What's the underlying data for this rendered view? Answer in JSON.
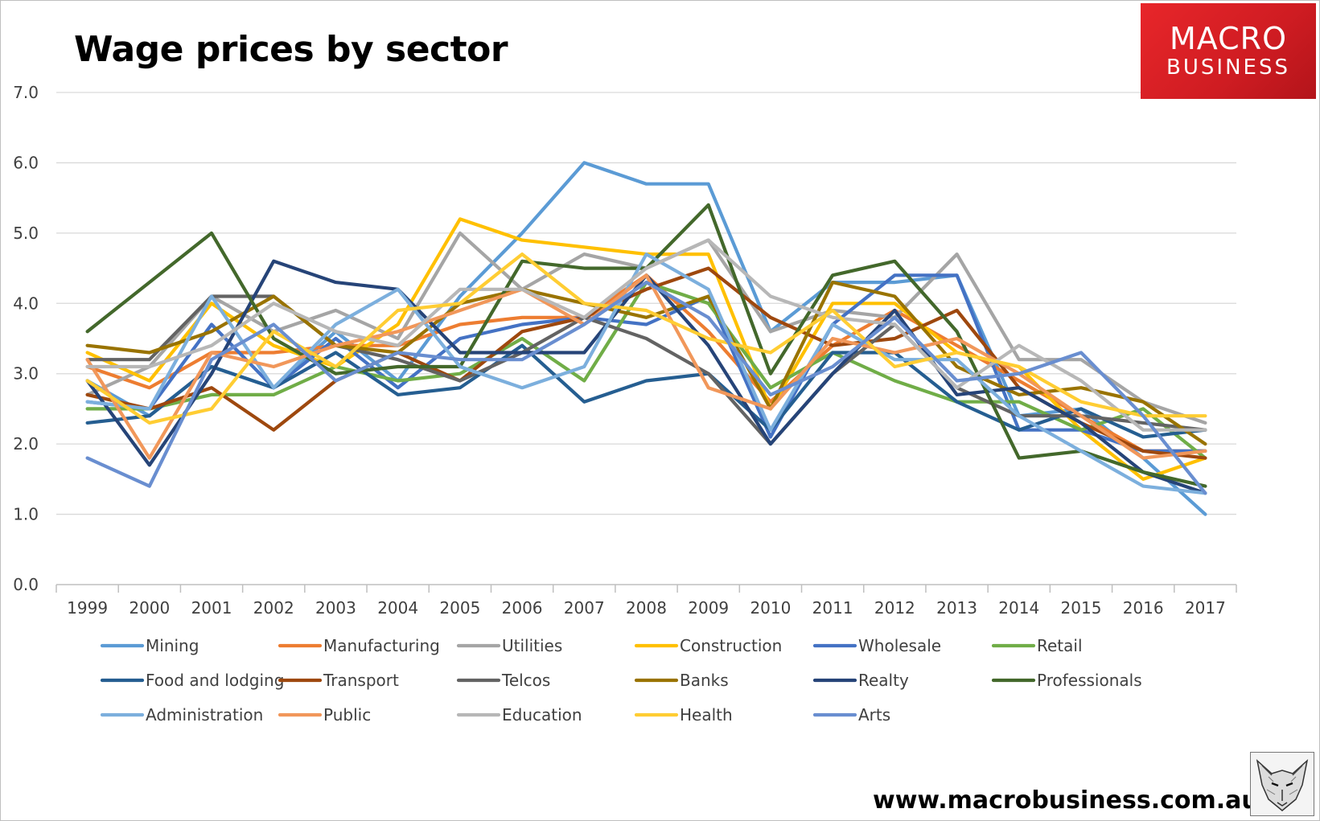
{
  "title": "Wage prices by sector",
  "logo": {
    "line1": "MACRO",
    "line2": "BUSINESS"
  },
  "website": "www.macrobusiness.com.au",
  "chart_data": {
    "type": "line",
    "title": "Wage prices by sector",
    "xlabel": "",
    "ylabel": "",
    "ylim": [
      0,
      7
    ],
    "yticks": [
      "0.0",
      "1.0",
      "2.0",
      "3.0",
      "4.0",
      "5.0",
      "6.0",
      "7.0"
    ],
    "grid": true,
    "legend_position": "bottom",
    "categories": [
      "1999",
      "2000",
      "2001",
      "2002",
      "2003",
      "2004",
      "2005",
      "2006",
      "2007",
      "2008",
      "2009",
      "2010",
      "2011",
      "2012",
      "2013",
      "2014",
      "2015",
      "2016",
      "2017"
    ],
    "series": [
      {
        "name": "Mining",
        "color": "#5b9bd5",
        "values": [
          2.9,
          2.4,
          3.1,
          2.8,
          3.6,
          2.9,
          4.1,
          5.0,
          6.0,
          5.7,
          5.7,
          3.6,
          4.3,
          4.3,
          4.4,
          2.4,
          2.5,
          1.8,
          1.0
        ]
      },
      {
        "name": "Manufacturing",
        "color": "#ed7d31",
        "values": [
          3.1,
          2.8,
          3.3,
          3.3,
          3.4,
          3.4,
          3.7,
          3.8,
          3.8,
          4.4,
          3.6,
          2.6,
          3.4,
          3.9,
          3.4,
          2.9,
          2.4,
          1.9,
          1.9
        ]
      },
      {
        "name": "Utilities",
        "color": "#a5a5a5",
        "values": [
          2.7,
          3.1,
          4.1,
          3.6,
          3.9,
          3.5,
          5.0,
          4.2,
          4.7,
          4.5,
          4.9,
          3.6,
          3.9,
          3.8,
          4.7,
          3.2,
          3.2,
          2.6,
          2.3
        ]
      },
      {
        "name": "Construction",
        "color": "#ffc000",
        "values": [
          3.3,
          2.9,
          4.0,
          3.4,
          3.1,
          3.7,
          5.2,
          4.9,
          4.8,
          4.7,
          4.7,
          2.5,
          4.0,
          4.0,
          3.3,
          3.1,
          2.2,
          1.5,
          1.8
        ]
      },
      {
        "name": "Wholesale",
        "color": "#4472c4",
        "values": [
          2.6,
          2.5,
          3.7,
          2.8,
          3.5,
          2.8,
          3.5,
          3.7,
          3.8,
          3.7,
          4.1,
          2.1,
          3.7,
          4.4,
          4.4,
          2.2,
          2.2,
          1.9,
          1.9
        ]
      },
      {
        "name": "Retail",
        "color": "#70ad47",
        "values": [
          2.5,
          2.5,
          2.7,
          2.7,
          3.1,
          2.9,
          3.0,
          3.5,
          2.9,
          4.3,
          4.0,
          2.8,
          3.3,
          2.9,
          2.6,
          2.6,
          2.2,
          2.5,
          1.8
        ]
      },
      {
        "name": "Food and lodging",
        "color": "#255e91",
        "values": [
          2.3,
          2.4,
          3.1,
          2.8,
          3.3,
          2.7,
          2.8,
          3.4,
          2.6,
          2.9,
          3.0,
          2.2,
          3.3,
          3.3,
          2.6,
          2.2,
          2.5,
          2.1,
          2.2
        ]
      },
      {
        "name": "Transport",
        "color": "#9e480e",
        "values": [
          2.7,
          2.5,
          2.8,
          2.2,
          2.9,
          3.3,
          2.9,
          3.6,
          3.8,
          4.2,
          4.5,
          3.8,
          3.4,
          3.5,
          3.9,
          2.8,
          2.3,
          1.9,
          1.8
        ]
      },
      {
        "name": "Telcos",
        "color": "#636363",
        "values": [
          3.2,
          3.2,
          4.1,
          4.1,
          3.4,
          3.2,
          2.9,
          3.3,
          3.8,
          3.5,
          3.0,
          2.0,
          3.0,
          3.7,
          2.8,
          2.4,
          2.4,
          2.3,
          2.2
        ]
      },
      {
        "name": "Banks",
        "color": "#997300",
        "values": [
          3.4,
          3.3,
          3.6,
          4.1,
          3.4,
          3.3,
          4.0,
          4.2,
          4.0,
          3.8,
          4.1,
          2.5,
          4.3,
          4.1,
          3.1,
          2.7,
          2.8,
          2.6,
          2.0
        ]
      },
      {
        "name": "Realty",
        "color": "#264478",
        "values": [
          2.9,
          1.7,
          3.0,
          4.6,
          4.3,
          4.2,
          3.3,
          3.3,
          3.3,
          4.4,
          3.4,
          2.0,
          3.0,
          3.9,
          2.7,
          2.8,
          2.3,
          1.6,
          1.3
        ]
      },
      {
        "name": "Professionals",
        "color": "#43682b",
        "values": [
          3.6,
          4.3,
          5.0,
          3.5,
          3.0,
          3.1,
          3.1,
          4.6,
          4.5,
          4.5,
          5.4,
          3.0,
          4.4,
          4.6,
          3.6,
          1.8,
          1.9,
          1.6,
          1.4
        ]
      },
      {
        "name": "Administration",
        "color": "#7cafdd",
        "values": [
          2.6,
          2.5,
          4.1,
          2.8,
          3.7,
          4.2,
          3.1,
          2.8,
          3.1,
          4.7,
          4.2,
          2.2,
          3.7,
          3.2,
          3.2,
          2.4,
          1.9,
          1.4,
          1.3
        ]
      },
      {
        "name": "Public",
        "color": "#f1975a",
        "values": [
          3.2,
          1.8,
          3.3,
          3.1,
          3.4,
          3.6,
          3.9,
          4.2,
          3.7,
          4.4,
          2.8,
          2.5,
          3.5,
          3.3,
          3.5,
          3.0,
          2.4,
          1.8,
          1.9
        ]
      },
      {
        "name": "Education",
        "color": "#b7b7b7",
        "values": [
          3.1,
          3.1,
          3.4,
          4.0,
          3.6,
          3.4,
          4.2,
          4.2,
          3.8,
          4.5,
          4.9,
          4.1,
          3.8,
          3.7,
          2.8,
          3.4,
          2.9,
          2.2,
          2.2
        ]
      },
      {
        "name": "Health",
        "color": "#ffcd33",
        "values": [
          2.9,
          2.3,
          2.5,
          3.6,
          3.1,
          3.9,
          4.0,
          4.7,
          4.0,
          3.9,
          3.5,
          3.3,
          3.9,
          3.1,
          3.3,
          3.1,
          2.6,
          2.4,
          2.4
        ]
      },
      {
        "name": "Arts",
        "color": "#698ed0",
        "values": [
          1.8,
          1.4,
          3.2,
          3.7,
          2.9,
          3.3,
          3.2,
          3.2,
          3.7,
          4.3,
          3.8,
          2.7,
          3.1,
          3.8,
          2.9,
          3.0,
          3.3,
          2.4,
          1.3
        ]
      }
    ]
  }
}
